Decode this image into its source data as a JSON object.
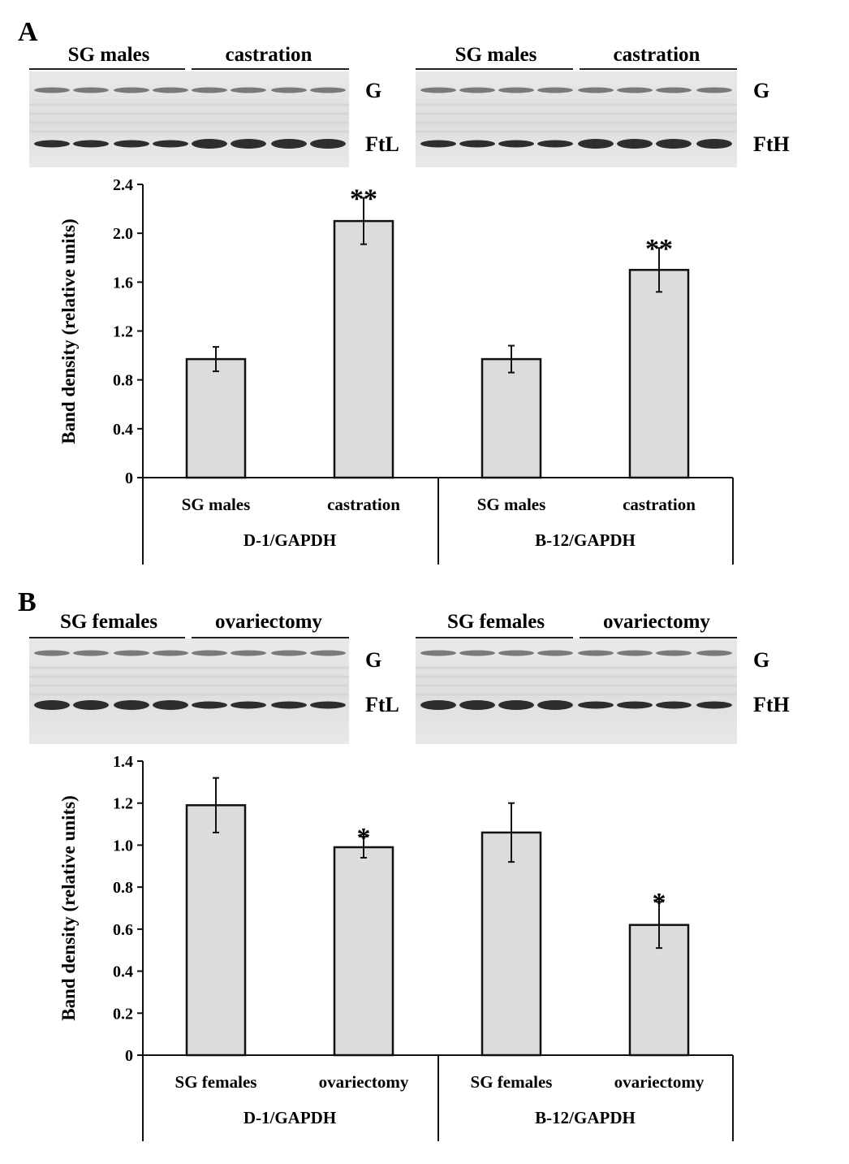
{
  "chart_data": [
    {
      "panel": "A",
      "type": "bar",
      "ylabel": "Band density (relative units)",
      "ylim": [
        0,
        2.4
      ],
      "yticks": [
        "0",
        "0.4",
        "0.8",
        "1.2",
        "1.6",
        "2.0",
        "2.4"
      ],
      "groups": [
        {
          "label": "D-1/GAPDH",
          "categories": [
            "SG males",
            "castration"
          ],
          "values": [
            0.97,
            2.1
          ],
          "errors": [
            0.1,
            0.19
          ],
          "sig": [
            "",
            "**"
          ]
        },
        {
          "label": "B-12/GAPDH",
          "categories": [
            "SG males",
            "castration"
          ],
          "values": [
            0.97,
            1.7
          ],
          "errors": [
            0.11,
            0.18
          ],
          "sig": [
            "",
            "**"
          ]
        }
      ],
      "blots": [
        {
          "groups": [
            "SG males",
            "castration"
          ],
          "bands": [
            "G",
            "FtL"
          ]
        },
        {
          "groups": [
            "SG males",
            "castration"
          ],
          "bands": [
            "G",
            "FtH"
          ]
        }
      ]
    },
    {
      "panel": "B",
      "type": "bar",
      "ylabel": "Band density (relative units)",
      "ylim": [
        0,
        1.4
      ],
      "yticks": [
        "0",
        "0.2",
        "0.4",
        "0.6",
        "0.8",
        "1.0",
        "1.2",
        "1.4"
      ],
      "groups": [
        {
          "label": "D-1/GAPDH",
          "categories": [
            "SG females",
            "ovariectomy"
          ],
          "values": [
            1.19,
            0.99
          ],
          "errors": [
            0.13,
            0.05
          ],
          "sig": [
            "",
            "*"
          ]
        },
        {
          "label": "B-12/GAPDH",
          "categories": [
            "SG females",
            "ovariectomy"
          ],
          "values": [
            1.06,
            0.62
          ],
          "errors": [
            0.14,
            0.11
          ],
          "sig": [
            "",
            "*"
          ]
        }
      ],
      "blots": [
        {
          "groups": [
            "SG females",
            "ovariectomy"
          ],
          "bands": [
            "G",
            "FtL"
          ]
        },
        {
          "groups": [
            "SG females",
            "ovariectomy"
          ],
          "bands": [
            "G",
            "FtH"
          ]
        }
      ]
    }
  ]
}
